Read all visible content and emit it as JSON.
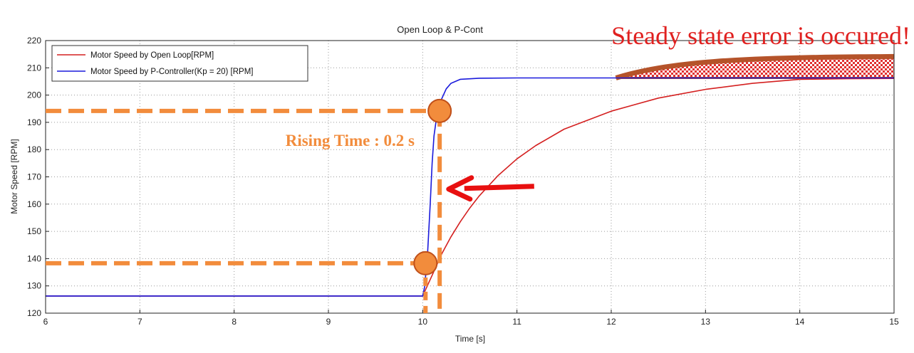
{
  "chart_data": {
    "type": "line",
    "title": "Open Loop & P-Cont",
    "xlabel": "Time [s]",
    "ylabel": "Motor Speed [RPM]",
    "xlim": [
      6,
      15
    ],
    "ylim": [
      120,
      220
    ],
    "xticks": [
      6,
      7,
      8,
      9,
      10,
      11,
      12,
      13,
      14,
      15
    ],
    "yticks": [
      120,
      130,
      140,
      150,
      160,
      170,
      180,
      190,
      200,
      210,
      220
    ],
    "grid": true,
    "legend_position": "top-left",
    "series": [
      {
        "name": "Motor Speed by Open Loop[RPM]",
        "color": "#d42020",
        "x": [
          6,
          10,
          10.1,
          10.2,
          10.3,
          10.4,
          10.5,
          10.6,
          10.8,
          11,
          11.2,
          11.5,
          12,
          12.5,
          13,
          13.5,
          14,
          14.5,
          15
        ],
        "y": [
          126.3,
          126.3,
          133.9,
          141.6,
          148.0,
          153.6,
          158.6,
          163.0,
          170.5,
          176.6,
          181.5,
          187.5,
          194.1,
          198.9,
          202.1,
          204.3,
          205.8,
          206.0,
          206.1
        ]
      },
      {
        "name": "Motor Speed by P-Controller(Kp = 20) [RPM]",
        "color": "#1a1adc",
        "x": [
          6,
          10.0,
          10.02,
          10.05,
          10.08,
          10.1,
          10.12,
          10.15,
          10.2,
          10.25,
          10.3,
          10.4,
          10.6,
          11,
          15
        ],
        "y": [
          126.3,
          126.3,
          129.5,
          141.0,
          160.0,
          175.0,
          185.0,
          192.5,
          198.5,
          202.3,
          204.3,
          205.8,
          206.2,
          206.3,
          206.3
        ]
      }
    ],
    "annotations": {
      "steady_state_text": "Steady state error is occured!",
      "rising_time_text": "Rising Time : 0.2 s",
      "rise_low_y": 138.3,
      "rise_high_y": 194.2,
      "rise_start_x": 10.03,
      "rise_end_x": 10.18,
      "error_band_start_x": 12.05,
      "error_band_upper_y": 214.3,
      "arrow_target_x": 10.2,
      "arrow_target_y": 165.5,
      "orange_color": "#f28c3c",
      "arrow_color": "#e81010",
      "band_color": "#b5532a"
    }
  }
}
